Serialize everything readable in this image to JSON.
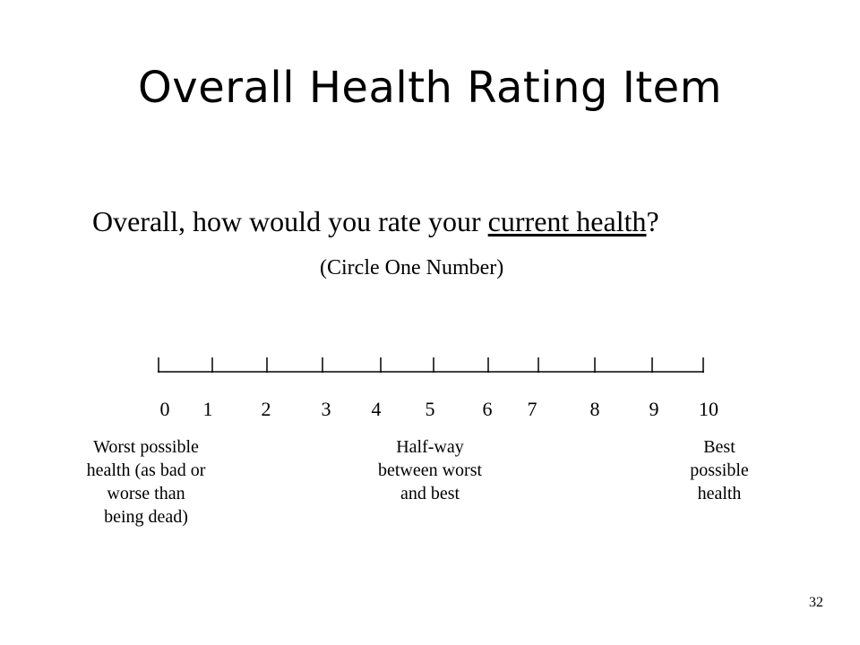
{
  "slide": {
    "title": "Overall Health Rating Item",
    "question": {
      "prefix": "Overall, how would you rate your ",
      "emphasis": "current health",
      "suffix": "?"
    },
    "instruction": "(Circle One Number)",
    "scale": {
      "numbers": [
        "0",
        "1",
        "2",
        "3",
        "4",
        "5",
        "6",
        "7",
        "8",
        "9",
        "10"
      ]
    },
    "anchors": {
      "worst": [
        "Worst possible",
        "health (as bad or",
        "worse than",
        "being dead)"
      ],
      "midpoint": [
        "Half-way",
        "between worst",
        "and best"
      ],
      "best": [
        "Best",
        "possible",
        "health"
      ]
    },
    "page_number": "32"
  }
}
